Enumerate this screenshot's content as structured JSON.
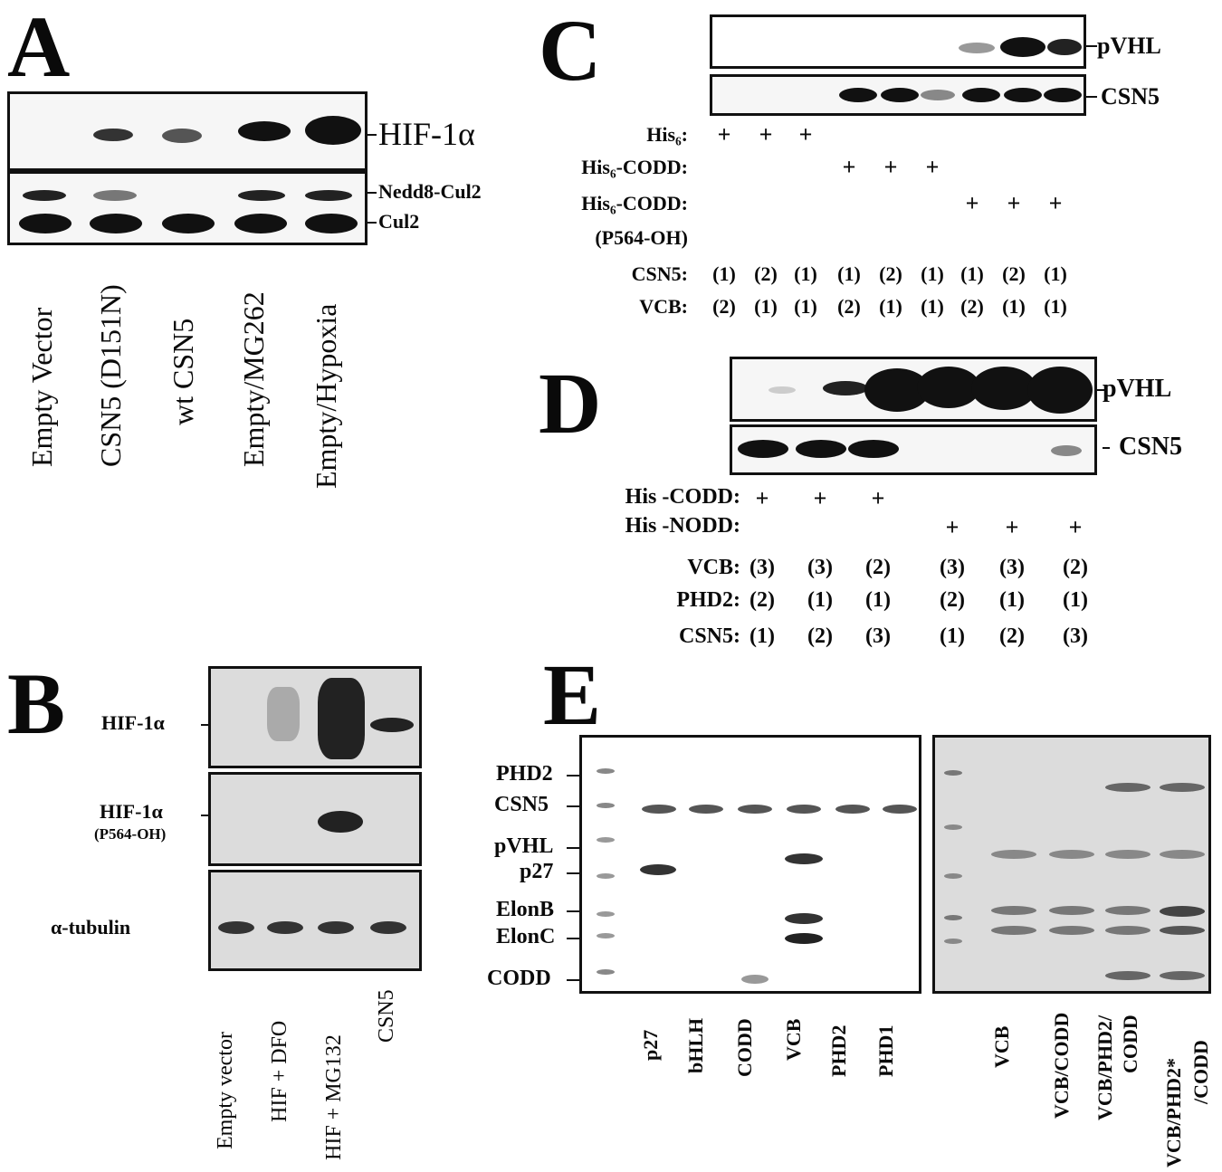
{
  "panelA": {
    "letter": "A",
    "band_labels": [
      "HIF-1α",
      "Nedd8-Cul2",
      "Cul2"
    ],
    "lanes": [
      "Empty Vector",
      "CSN5 (D151N)",
      "wt CSN5",
      "Empty/MG262",
      "Empty/Hypoxia"
    ]
  },
  "panelB": {
    "letter": "B",
    "band_labels": [
      "HIF-1α",
      "HIF-1α",
      "(P564-OH)",
      "α-tubulin"
    ],
    "lanes": [
      "Empty vector",
      "HIF + DFO",
      "HIF + MG132",
      "CSN5"
    ]
  },
  "panelC": {
    "letter": "C",
    "band_labels": [
      "pVHL",
      "CSN5"
    ],
    "rows": [
      {
        "label": "His₆:",
        "cells": [
          "+",
          "+",
          "+",
          "",
          "",
          "",
          "",
          "",
          ""
        ]
      },
      {
        "label": "His₆-CODD:",
        "cells": [
          "",
          "",
          "",
          "+",
          "+",
          "+",
          "",
          "",
          ""
        ]
      },
      {
        "label": "His₆-CODD:",
        "cells": [
          "",
          "",
          "",
          "",
          "",
          "",
          "+",
          "+",
          "+"
        ]
      },
      {
        "label": "(P564-OH)",
        "cells": [
          "",
          "",
          "",
          "",
          "",
          "",
          "",
          "",
          ""
        ]
      },
      {
        "label": "CSN5:",
        "cells": [
          "(1)",
          "(2)",
          "(1)",
          "(1)",
          "(2)",
          "(1)",
          "(1)",
          "(2)",
          "(1)"
        ]
      },
      {
        "label": "VCB:",
        "cells": [
          "(2)",
          "(1)",
          "(1)",
          "(2)",
          "(1)",
          "(1)",
          "(2)",
          "(1)",
          "(1)"
        ]
      }
    ]
  },
  "panelD": {
    "letter": "D",
    "band_labels": [
      "pVHL",
      "CSN5"
    ],
    "rows": [
      {
        "label": "His -CODD:",
        "cells": [
          "+",
          "+",
          "+",
          "",
          "",
          ""
        ]
      },
      {
        "label": "His -NODD:",
        "cells": [
          "",
          "",
          "",
          "+",
          "+",
          "+"
        ]
      },
      {
        "label": "VCB:",
        "cells": [
          "(3)",
          "(3)",
          "(2)",
          "(3)",
          "(3)",
          "(2)"
        ]
      },
      {
        "label": "PHD2:",
        "cells": [
          "(2)",
          "(1)",
          "(1)",
          "(2)",
          "(1)",
          "(1)"
        ]
      },
      {
        "label": "CSN5:",
        "cells": [
          "(1)",
          "(2)",
          "(3)",
          "(1)",
          "(2)",
          "(3)"
        ]
      }
    ]
  },
  "panelE": {
    "letter": "E",
    "marker_labels": [
      "PHD2",
      "CSN5",
      "pVHL",
      "p27",
      "ElonB",
      "ElonC",
      "CODD"
    ],
    "left_lanes": [
      "p27",
      "bHLH",
      "CODD",
      "VCB",
      "PHD2",
      "PHD1"
    ],
    "right_lanes": [
      "VCB",
      "VCB/CODD",
      "VCB/PHD2/",
      "CODD",
      "VCB/PHD2*",
      "/CODD"
    ]
  }
}
